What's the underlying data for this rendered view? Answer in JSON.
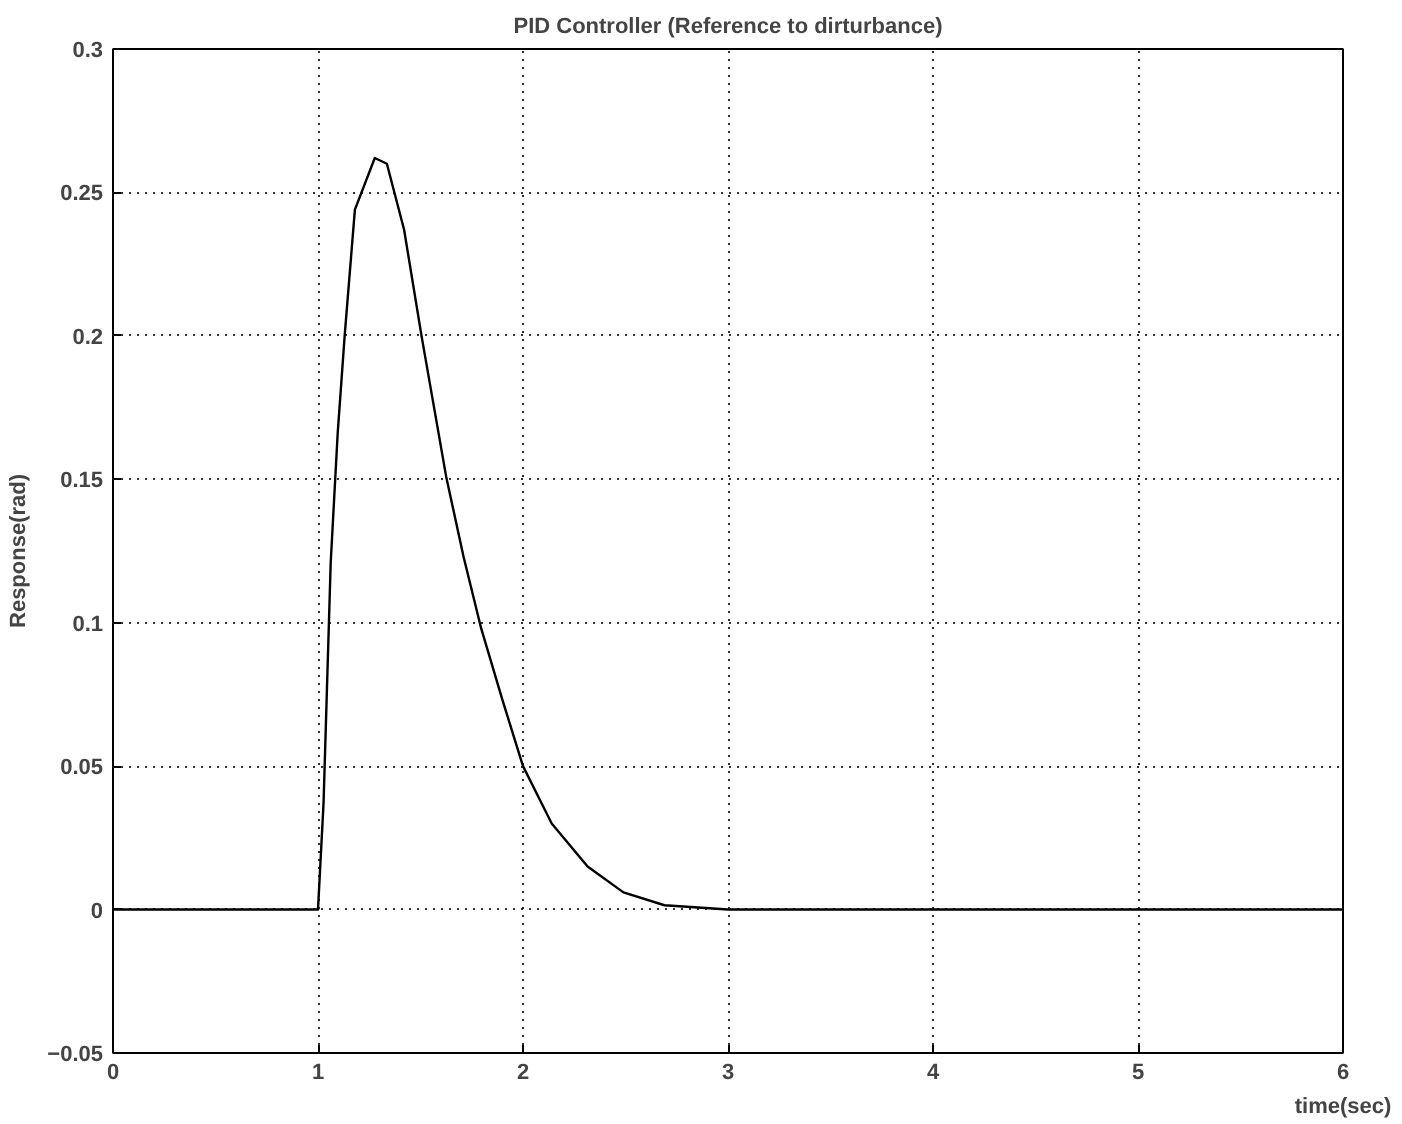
{
  "chart_data": {
    "type": "line",
    "title": "PID Controller (Reference to dirturbance)",
    "xlabel": "time(sec)",
    "ylabel": "Response(rad)",
    "x": [
      0,
      1,
      1.027,
      1.062,
      1.096,
      1.13,
      1.18,
      1.277,
      1.336,
      1.42,
      1.505,
      1.625,
      1.71,
      1.796,
      1.9,
      2.0,
      2.14,
      2.315,
      2.49,
      2.69,
      3,
      4,
      5,
      6
    ],
    "series": [
      {
        "color": "#000000",
        "values": [
          0,
          0,
          0.037,
          0.121,
          0.166,
          0.2,
          0.244,
          0.262,
          0.26,
          0.237,
          0.2,
          0.151,
          0.123,
          0.098,
          0.073,
          0.05,
          0.03,
          0.015,
          0.006,
          0.0015,
          0,
          0,
          0,
          0
        ]
      }
    ],
    "xlim": [
      0,
      6
    ],
    "ylim": [
      -0.05,
      0.3
    ],
    "xticks": [
      0,
      1,
      2,
      3,
      4,
      5,
      6
    ],
    "yticks": [
      -0.05,
      0,
      0.05,
      0.1,
      0.15,
      0.2,
      0.25,
      0.3
    ],
    "grid": true,
    "marker": "none",
    "line_style": "solid"
  }
}
